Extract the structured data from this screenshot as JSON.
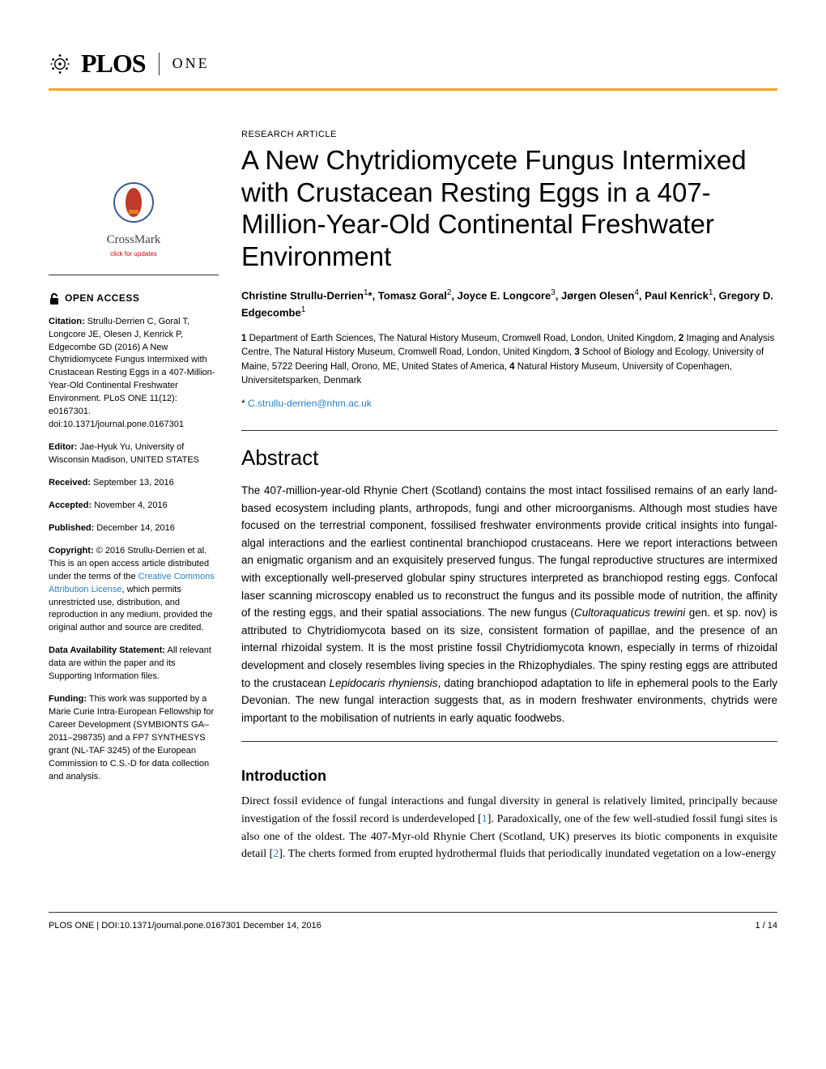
{
  "header": {
    "brand_plos": "PLOS",
    "brand_one": "ONE"
  },
  "article": {
    "type": "RESEARCH ARTICLE",
    "title": "A New Chytridiomycete Fungus Intermixed with Crustacean Resting Eggs in a 407-Million-Year-Old Continental Freshwater Environment",
    "authors_html": "Christine Strullu-Derrien<sup>1</sup>*, Tomasz Goral<sup>2</sup>, Joyce E. Longcore<sup>3</sup>, Jørgen Olesen<sup>4</sup>, Paul Kenrick<sup>1</sup>, Gregory D. Edgecombe<sup>1</sup>",
    "affiliations_html": "<b>1</b> Department of Earth Sciences, The Natural History Museum, Cromwell Road, London, United Kingdom, <b>2</b> Imaging and Analysis Centre, The Natural History Museum, Cromwell Road, London, United Kingdom, <b>3</b> School of Biology and Ecology, University of Maine, 5722 Deering Hall, Orono, ME, United States of America, <b>4</b> Natural History Museum, University of Copenhagen, Universitetsparken, Denmark",
    "correspondence_prefix": "* ",
    "correspondence_email": "C.strullu-derrien@nhm.ac.uk"
  },
  "abstract": {
    "heading": "Abstract",
    "text_html": "The 407-million-year-old Rhynie Chert (Scotland) contains the most intact fossilised remains of an early land-based ecosystem including plants, arthropods, fungi and other microorganisms. Although most studies have focused on the terrestrial component, fossilised freshwater environments provide critical insights into fungal-algal interactions and the earliest continental branchiopod crustaceans. Here we report interactions between an enigmatic organism and an exquisitely preserved fungus. The fungal reproductive structures are intermixed with exceptionally well-preserved globular spiny structures interpreted as branchiopod resting eggs. Confocal laser scanning microscopy enabled us to reconstruct the fungus and its possible mode of nutrition, the affinity of the resting eggs, and their spatial associations. The new fungus (<em>Cultoraquaticus trewini</em> gen. et sp. nov) is attributed to Chytridiomycota based on its size, consistent formation of papillae, and the presence of an internal rhizoidal system. It is the most pristine fossil Chytridiomycota known, especially in terms of rhizoidal development and closely resembles living species in the Rhizophydiales. The spiny resting eggs are attributed to the crustacean <em>Lepidocaris rhyniensis</em>, dating branchiopod adaptation to life in ephemeral pools to the Early Devonian. The new fungal interaction suggests that, as in modern freshwater environments, chytrids were important to the mobilisation of nutrients in early aquatic foodwebs."
  },
  "introduction": {
    "heading": "Introduction",
    "text_html": "Direct fossil evidence of fungal interactions and fungal diversity in general is relatively limited, principally because investigation of the fossil record is underdeveloped [<a href='#'>1</a>]. Paradoxically, one of the few well-studied fossil fungi sites is also one of the oldest. The 407-Myr-old Rhynie Chert (Scotland, UK) preserves its biotic components in exquisite detail [<a href='#'>2</a>]. The cherts formed from erupted hydrothermal fluids that periodically inundated vegetation on a low-energy"
  },
  "sidebar": {
    "crossmark_label": "CrossMark",
    "crossmark_sub": "click for updates",
    "open_access": "OPEN ACCESS",
    "citation_label": "Citation:",
    "citation_text": " Strullu-Derrien C, Goral T, Longcore JE, Olesen J, Kenrick P, Edgecombe GD (2016) A New Chytridiomycete Fungus Intermixed with Crustacean Resting Eggs in a 407-Million-Year-Old Continental Freshwater Environment. PLoS ONE 11(12): e0167301. doi:10.1371/journal.pone.0167301",
    "editor_label": "Editor:",
    "editor_text": " Jae-Hyuk Yu, University of Wisconsin Madison, UNITED STATES",
    "received_label": "Received:",
    "received_text": " September 13, 2016",
    "accepted_label": "Accepted:",
    "accepted_text": " November 4, 2016",
    "published_label": "Published:",
    "published_text": " December 14, 2016",
    "copyright_label": "Copyright:",
    "copyright_text_before": " © 2016 Strullu-Derrien et al. This is an open access article distributed under the terms of the ",
    "copyright_link": "Creative Commons Attribution License",
    "copyright_text_after": ", which permits unrestricted use, distribution, and reproduction in any medium, provided the original author and source are credited.",
    "data_label": "Data Availability Statement:",
    "data_text": " All relevant data are within the paper and its Supporting Information files.",
    "funding_label": "Funding:",
    "funding_text": " This work was supported by a Marie Curie Intra-European Fellowship for Career Development (SYMBIONTS GA–2011–298735) and a FP7 SYNTHESYS grant (NL-TAF 3245) of the European Commission to C.S.-D for data collection and analysis."
  },
  "footer": {
    "left": "PLOS ONE | DOI:10.1371/journal.pone.0167301    December 14, 2016",
    "right": "1 / 14"
  },
  "colors": {
    "accent": "#f5a623",
    "link": "#2a7fc4",
    "text": "#000000"
  }
}
